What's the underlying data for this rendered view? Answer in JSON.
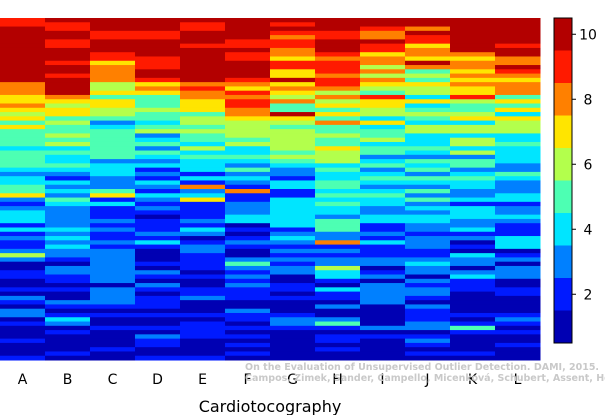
{
  "chart_data": {
    "type": "heatmap",
    "title": "",
    "xlabel": "Cardiotocography",
    "ylabel": "",
    "x_tick_labels": [
      "A",
      "B",
      "C",
      "D",
      "E",
      "F",
      "G",
      "H",
      "I",
      "J",
      "K",
      "L"
    ],
    "colorbar": {
      "range": [
        0.5,
        10.5
      ],
      "tick_labels": [
        "2",
        "4",
        "6",
        "8",
        "10"
      ],
      "tick_values": [
        2,
        4,
        6,
        8,
        10
      ],
      "colormap": "jet"
    },
    "grid": false,
    "legend": "none",
    "columns": [
      {
        "label": "A",
        "top_rank": 10,
        "red_fraction": 0.15,
        "orange_band": 0.28,
        "blue_start": 0.55
      },
      {
        "label": "B",
        "top_rank": 10,
        "red_fraction": 0.16,
        "orange_band": 0.27,
        "blue_start": 0.57
      },
      {
        "label": "C",
        "top_rank": 10,
        "red_fraction": 0.06,
        "orange_band": 0.22,
        "blue_start": 0.5
      },
      {
        "label": "D",
        "top_rank": 10,
        "red_fraction": 0.14,
        "orange_band": 0.22,
        "blue_start": 0.45
      },
      {
        "label": "E",
        "top_rank": 10,
        "red_fraction": 0.18,
        "orange_band": 0.27,
        "blue_start": 0.47
      },
      {
        "label": "F",
        "top_rank": 10,
        "red_fraction": 0.11,
        "orange_band": 0.33,
        "blue_start": 0.48
      },
      {
        "label": "G",
        "top_rank": 10,
        "red_fraction": 0.02,
        "orange_band": 0.25,
        "blue_start": 0.55
      },
      {
        "label": "H",
        "top_rank": 10,
        "red_fraction": 0.01,
        "orange_band": 0.3,
        "blue_start": 0.7
      },
      {
        "label": "I",
        "top_rank": 10,
        "red_fraction": 0.0,
        "orange_band": 0.2,
        "blue_start": 0.65
      },
      {
        "label": "J",
        "top_rank": 10,
        "red_fraction": 0.0,
        "orange_band": 0.15,
        "blue_start": 0.6
      },
      {
        "label": "K",
        "top_rank": 10,
        "red_fraction": 0.05,
        "orange_band": 0.25,
        "blue_start": 0.55
      },
      {
        "label": "L",
        "top_rank": 10,
        "red_fraction": 0.07,
        "orange_band": 0.25,
        "blue_start": 0.52
      }
    ]
  },
  "watermark": {
    "line1": "On the Evaluation of Unsupervised Outlier Detection. DAMI, 2015.",
    "line2": "Campos, Zimek, Sander, Campello, Micenková, Schubert, Assent, Houle"
  }
}
